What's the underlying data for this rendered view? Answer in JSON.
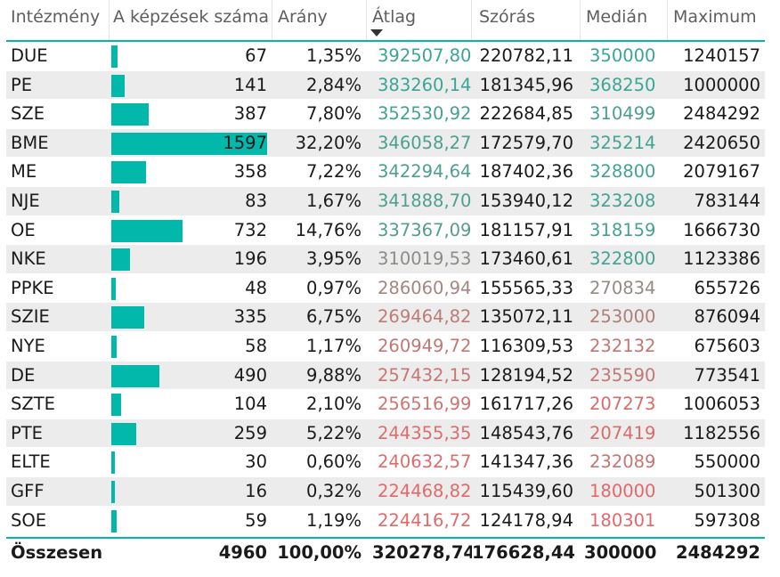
{
  "columns": [
    "Intézmény",
    "A képzések száma",
    "Arány",
    "Átlag",
    "Szórás",
    "Medián",
    "Maximum"
  ],
  "colors": {
    "accent": "#01b8aa",
    "good": "#4aa89a",
    "mid": "#a08c88",
    "bad": "#e06a6a"
  },
  "rows": [
    {
      "name": "DUE",
      "count": "67",
      "countValue": 67,
      "ratio": "1,35%",
      "mean": "392507,80",
      "meanColor": "#3aa597",
      "sd": "220782,11",
      "median": "350000",
      "medianColor": "#3aa597",
      "max": "1240157"
    },
    {
      "name": "PE",
      "count": "141",
      "countValue": 141,
      "ratio": "2,84%",
      "mean": "383260,14",
      "meanColor": "#3aa597",
      "sd": "181345,96",
      "median": "368250",
      "medianColor": "#3aa597",
      "max": "1000000"
    },
    {
      "name": "SZE",
      "count": "387",
      "countValue": 387,
      "ratio": "7,80%",
      "mean": "352530,92",
      "meanColor": "#45a293",
      "sd": "222684,85",
      "median": "310499",
      "medianColor": "#4a9f90",
      "max": "2484292"
    },
    {
      "name": "BME",
      "count": "1597",
      "countValue": 1597,
      "ratio": "32,20%",
      "mean": "346058,27",
      "meanColor": "#4aa091",
      "sd": "172579,70",
      "median": "325214",
      "medianColor": "#43a394",
      "max": "2420650"
    },
    {
      "name": "ME",
      "count": "358",
      "countValue": 358,
      "ratio": "7,22%",
      "mean": "342294,64",
      "meanColor": "#4d9f90",
      "sd": "187402,36",
      "median": "328800",
      "medianColor": "#42a395",
      "max": "2079167"
    },
    {
      "name": "NJE",
      "count": "83",
      "countValue": 83,
      "ratio": "1,67%",
      "mean": "341888,70",
      "meanColor": "#4e9f90",
      "sd": "153940,12",
      "median": "323208",
      "medianColor": "#44a294",
      "max": "783144"
    },
    {
      "name": "OE",
      "count": "732",
      "countValue": 732,
      "ratio": "14,76%",
      "mean": "337367,09",
      "meanColor": "#559c8d",
      "sd": "181157,91",
      "median": "318159",
      "medianColor": "#47a192",
      "max": "1666730"
    },
    {
      "name": "NKE",
      "count": "196",
      "countValue": 196,
      "ratio": "3,95%",
      "mean": "310019,53",
      "meanColor": "#8e8c86",
      "sd": "173460,61",
      "median": "322800",
      "medianColor": "#44a294",
      "max": "1123386"
    },
    {
      "name": "PPKE",
      "count": "48",
      "countValue": 48,
      "ratio": "0,97%",
      "mean": "286060,94",
      "meanColor": "#a4867f",
      "sd": "155565,33",
      "median": "270834",
      "medianColor": "#958b84",
      "max": "655726"
    },
    {
      "name": "SZIE",
      "count": "335",
      "countValue": 335,
      "ratio": "6,75%",
      "mean": "269464,82",
      "meanColor": "#bd7b76",
      "sd": "135072,11",
      "median": "253000",
      "medianColor": "#b07e79",
      "max": "876094"
    },
    {
      "name": "NYE",
      "count": "58",
      "countValue": 58,
      "ratio": "1,17%",
      "mean": "260949,72",
      "meanColor": "#c47774",
      "sd": "116309,53",
      "median": "232132",
      "medianColor": "#c57572",
      "max": "675603"
    },
    {
      "name": "DE",
      "count": "490",
      "countValue": 490,
      "ratio": "9,88%",
      "mean": "257432,15",
      "meanColor": "#c97573",
      "sd": "128194,52",
      "median": "235590",
      "medianColor": "#c07875",
      "max": "773541"
    },
    {
      "name": "SZTE",
      "count": "104",
      "countValue": 104,
      "ratio": "2,10%",
      "mean": "256516,99",
      "meanColor": "#cc7473",
      "sd": "161717,26",
      "median": "207273",
      "medianColor": "#d86c6b",
      "max": "1006053"
    },
    {
      "name": "PTE",
      "count": "259",
      "countValue": 259,
      "ratio": "5,22%",
      "mean": "244355,35",
      "meanColor": "#d96e6c",
      "sd": "148543,76",
      "median": "207419",
      "medianColor": "#d86c6b",
      "max": "1182556"
    },
    {
      "name": "ELTE",
      "count": "30",
      "countValue": 30,
      "ratio": "0,60%",
      "mean": "240632,57",
      "meanColor": "#dc6d6b",
      "sd": "141347,36",
      "median": "232089",
      "medianColor": "#c57572",
      "max": "550000"
    },
    {
      "name": "GFF",
      "count": "16",
      "countValue": 16,
      "ratio": "0,32%",
      "mean": "224468,82",
      "meanColor": "#e2696a",
      "sd": "115439,60",
      "median": "180000",
      "medianColor": "#e4686a",
      "max": "501300"
    },
    {
      "name": "SOE",
      "count": "59",
      "countValue": 59,
      "ratio": "1,19%",
      "mean": "224416,72",
      "meanColor": "#e2696a",
      "sd": "124178,94",
      "median": "180301",
      "medianColor": "#e4686a",
      "max": "597308"
    }
  ],
  "total": {
    "label": "Összesen",
    "count": "4960",
    "ratio": "100,00%",
    "mean": "320278,74",
    "sd": "176628,44",
    "median": "300000",
    "max": "2484292"
  },
  "barMax": 1597
}
